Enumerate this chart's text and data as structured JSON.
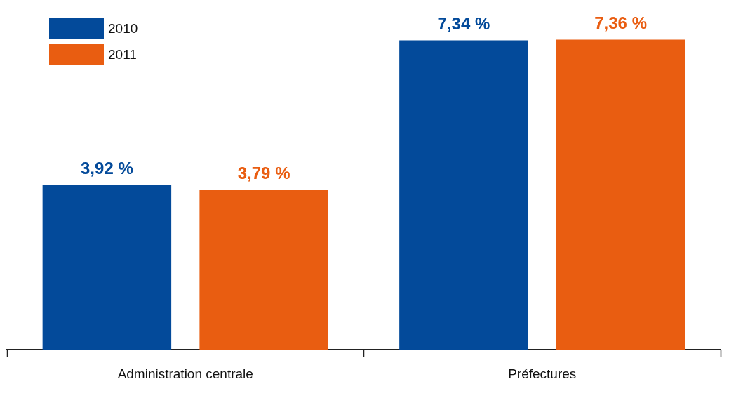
{
  "chart_data": {
    "type": "bar",
    "categories": [
      "Administration centrale",
      "Préfectures"
    ],
    "series": [
      {
        "name": "2010",
        "color": "#034a9a",
        "values": [
          3.92,
          7.34
        ],
        "value_labels": [
          "3,92 %",
          "7,34 %"
        ]
      },
      {
        "name": "2011",
        "color": "#e95d11",
        "values": [
          3.79,
          7.36
        ],
        "value_labels": [
          "3,79 %",
          "7,36 %"
        ]
      }
    ],
    "legend": "top left",
    "grid": false
  }
}
